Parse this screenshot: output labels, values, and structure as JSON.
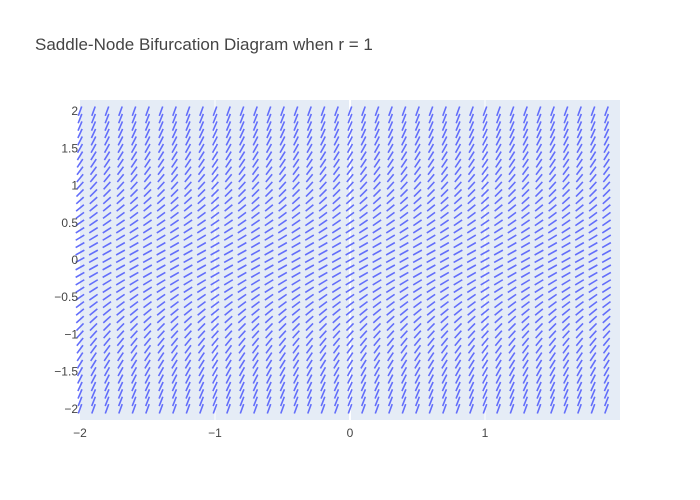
{
  "chart_data": {
    "type": "quiver",
    "title": "Saddle-Node Bifurcation Diagram when r = 1",
    "xlabel": "",
    "ylabel": "",
    "xlim": [
      -2,
      2
    ],
    "ylim": [
      -2.15,
      2.15
    ],
    "x_ticks": [
      -2,
      -1,
      0,
      1
    ],
    "x_tick_labels": [
      "−2",
      "−1",
      "0",
      "1"
    ],
    "y_ticks": [
      -2,
      -1.5,
      -1,
      -0.5,
      0,
      0.5,
      1,
      1.5,
      2
    ],
    "y_tick_labels": [
      "−2",
      "−1.5",
      "−1",
      "−0.5",
      "0",
      "0.5",
      "1",
      "1.5",
      "2"
    ],
    "grid": true,
    "plot_background": "#E5ECF6",
    "line_color": "#636EFA",
    "field": {
      "equation": "dy/dx = r + y^2",
      "r": 1,
      "x_start": -2,
      "x_step": 0.1,
      "x_count": 40,
      "y_start": -2,
      "y_step": 0.1,
      "y_count": 41
    }
  }
}
